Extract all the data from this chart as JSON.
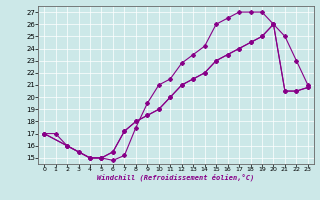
{
  "bg_color": "#cce8e8",
  "line_color": "#880088",
  "xlim": [
    -0.5,
    23.5
  ],
  "ylim": [
    14.5,
    27.5
  ],
  "xticks": [
    0,
    1,
    2,
    3,
    4,
    5,
    6,
    7,
    8,
    9,
    10,
    11,
    12,
    13,
    14,
    15,
    16,
    17,
    18,
    19,
    20,
    21,
    22,
    23
  ],
  "yticks": [
    15,
    16,
    17,
    18,
    19,
    20,
    21,
    22,
    23,
    24,
    25,
    26,
    27
  ],
  "xlabel": "Windchill (Refroidissement éolien,°C)",
  "line1_x": [
    0,
    1,
    2,
    3,
    4,
    5,
    6,
    7,
    8,
    9,
    10,
    11,
    12,
    13,
    14,
    15,
    16,
    17,
    18,
    19,
    20,
    21,
    22,
    23
  ],
  "line1_y": [
    17,
    17,
    16,
    15.5,
    15,
    15,
    14.8,
    15.2,
    17.5,
    19.5,
    21,
    21.5,
    22.8,
    23.5,
    24.2,
    26,
    26.5,
    27,
    27,
    27,
    26,
    25,
    23,
    21
  ],
  "line2_x": [
    0,
    2,
    3,
    4,
    5,
    6,
    7,
    8,
    9,
    10,
    11,
    12,
    13,
    14,
    15,
    16,
    17,
    18,
    19,
    20,
    21,
    22,
    23
  ],
  "line2_y": [
    17,
    16,
    15.5,
    15,
    15,
    15.5,
    17.2,
    18,
    18.5,
    19,
    20,
    21,
    21.5,
    22,
    23,
    23.5,
    24,
    24.5,
    25,
    26,
    20.5,
    20.5,
    20.8
  ],
  "line3_x": [
    0,
    2,
    4,
    5,
    6,
    7,
    8,
    9,
    10,
    11,
    12,
    13,
    14,
    15,
    16,
    17,
    18,
    19,
    20,
    21,
    22,
    23
  ],
  "line3_y": [
    17,
    16,
    15,
    15,
    15.5,
    17.2,
    18,
    18.5,
    19,
    20,
    21,
    21.5,
    22,
    23,
    23.5,
    24,
    24.5,
    25,
    26,
    20.5,
    20.5,
    20.8
  ]
}
